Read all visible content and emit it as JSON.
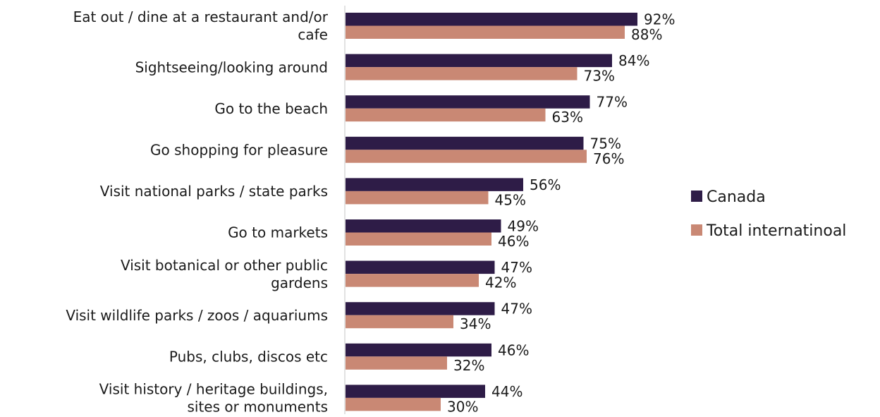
{
  "chart_data": {
    "type": "bar",
    "orientation": "horizontal",
    "title": "",
    "xlabel": "",
    "ylabel": "",
    "xlim": [
      0,
      100
    ],
    "grid": false,
    "legend_position": "right",
    "categories": [
      "Eat out / dine at a restaurant and/or cafe",
      "Sightseeing/looking around",
      "Go to the beach",
      "Go shopping for pleasure",
      "Visit national parks / state parks",
      "Go to markets",
      "Visit botanical or other public gardens",
      "Visit wildlife parks / zoos / aquariums",
      "Pubs, clubs, discos etc",
      "Visit history / heritage buildings, sites or monuments"
    ],
    "category_label_lines": [
      [
        "Eat out / dine at a restaurant and/or",
        "cafe"
      ],
      [
        "Sightseeing/looking around"
      ],
      [
        "Go to the beach"
      ],
      [
        "Go shopping for pleasure"
      ],
      [
        "Visit national parks / state parks"
      ],
      [
        "Go to markets"
      ],
      [
        "Visit botanical or other public",
        "gardens"
      ],
      [
        "Visit wildlife parks / zoos / aquariums"
      ],
      [
        "Pubs, clubs, discos etc"
      ],
      [
        "Visit history / heritage buildings,",
        "sites or monuments"
      ]
    ],
    "series": [
      {
        "name": "Canada",
        "color": "#2e1c47",
        "values": [
          92,
          84,
          77,
          75,
          56,
          49,
          47,
          47,
          46,
          44
        ],
        "labels": [
          "92%",
          "84%",
          "77%",
          "75%",
          "56%",
          "49%",
          "47%",
          "47%",
          "46%",
          "44%"
        ]
      },
      {
        "name": "Total internatinoal",
        "color": "#c98874",
        "values": [
          88,
          73,
          63,
          76,
          45,
          46,
          42,
          34,
          32,
          30
        ],
        "labels": [
          "88%",
          "73%",
          "63%",
          "76%",
          "45%",
          "46%",
          "42%",
          "34%",
          "32%",
          "30%"
        ]
      }
    ]
  }
}
